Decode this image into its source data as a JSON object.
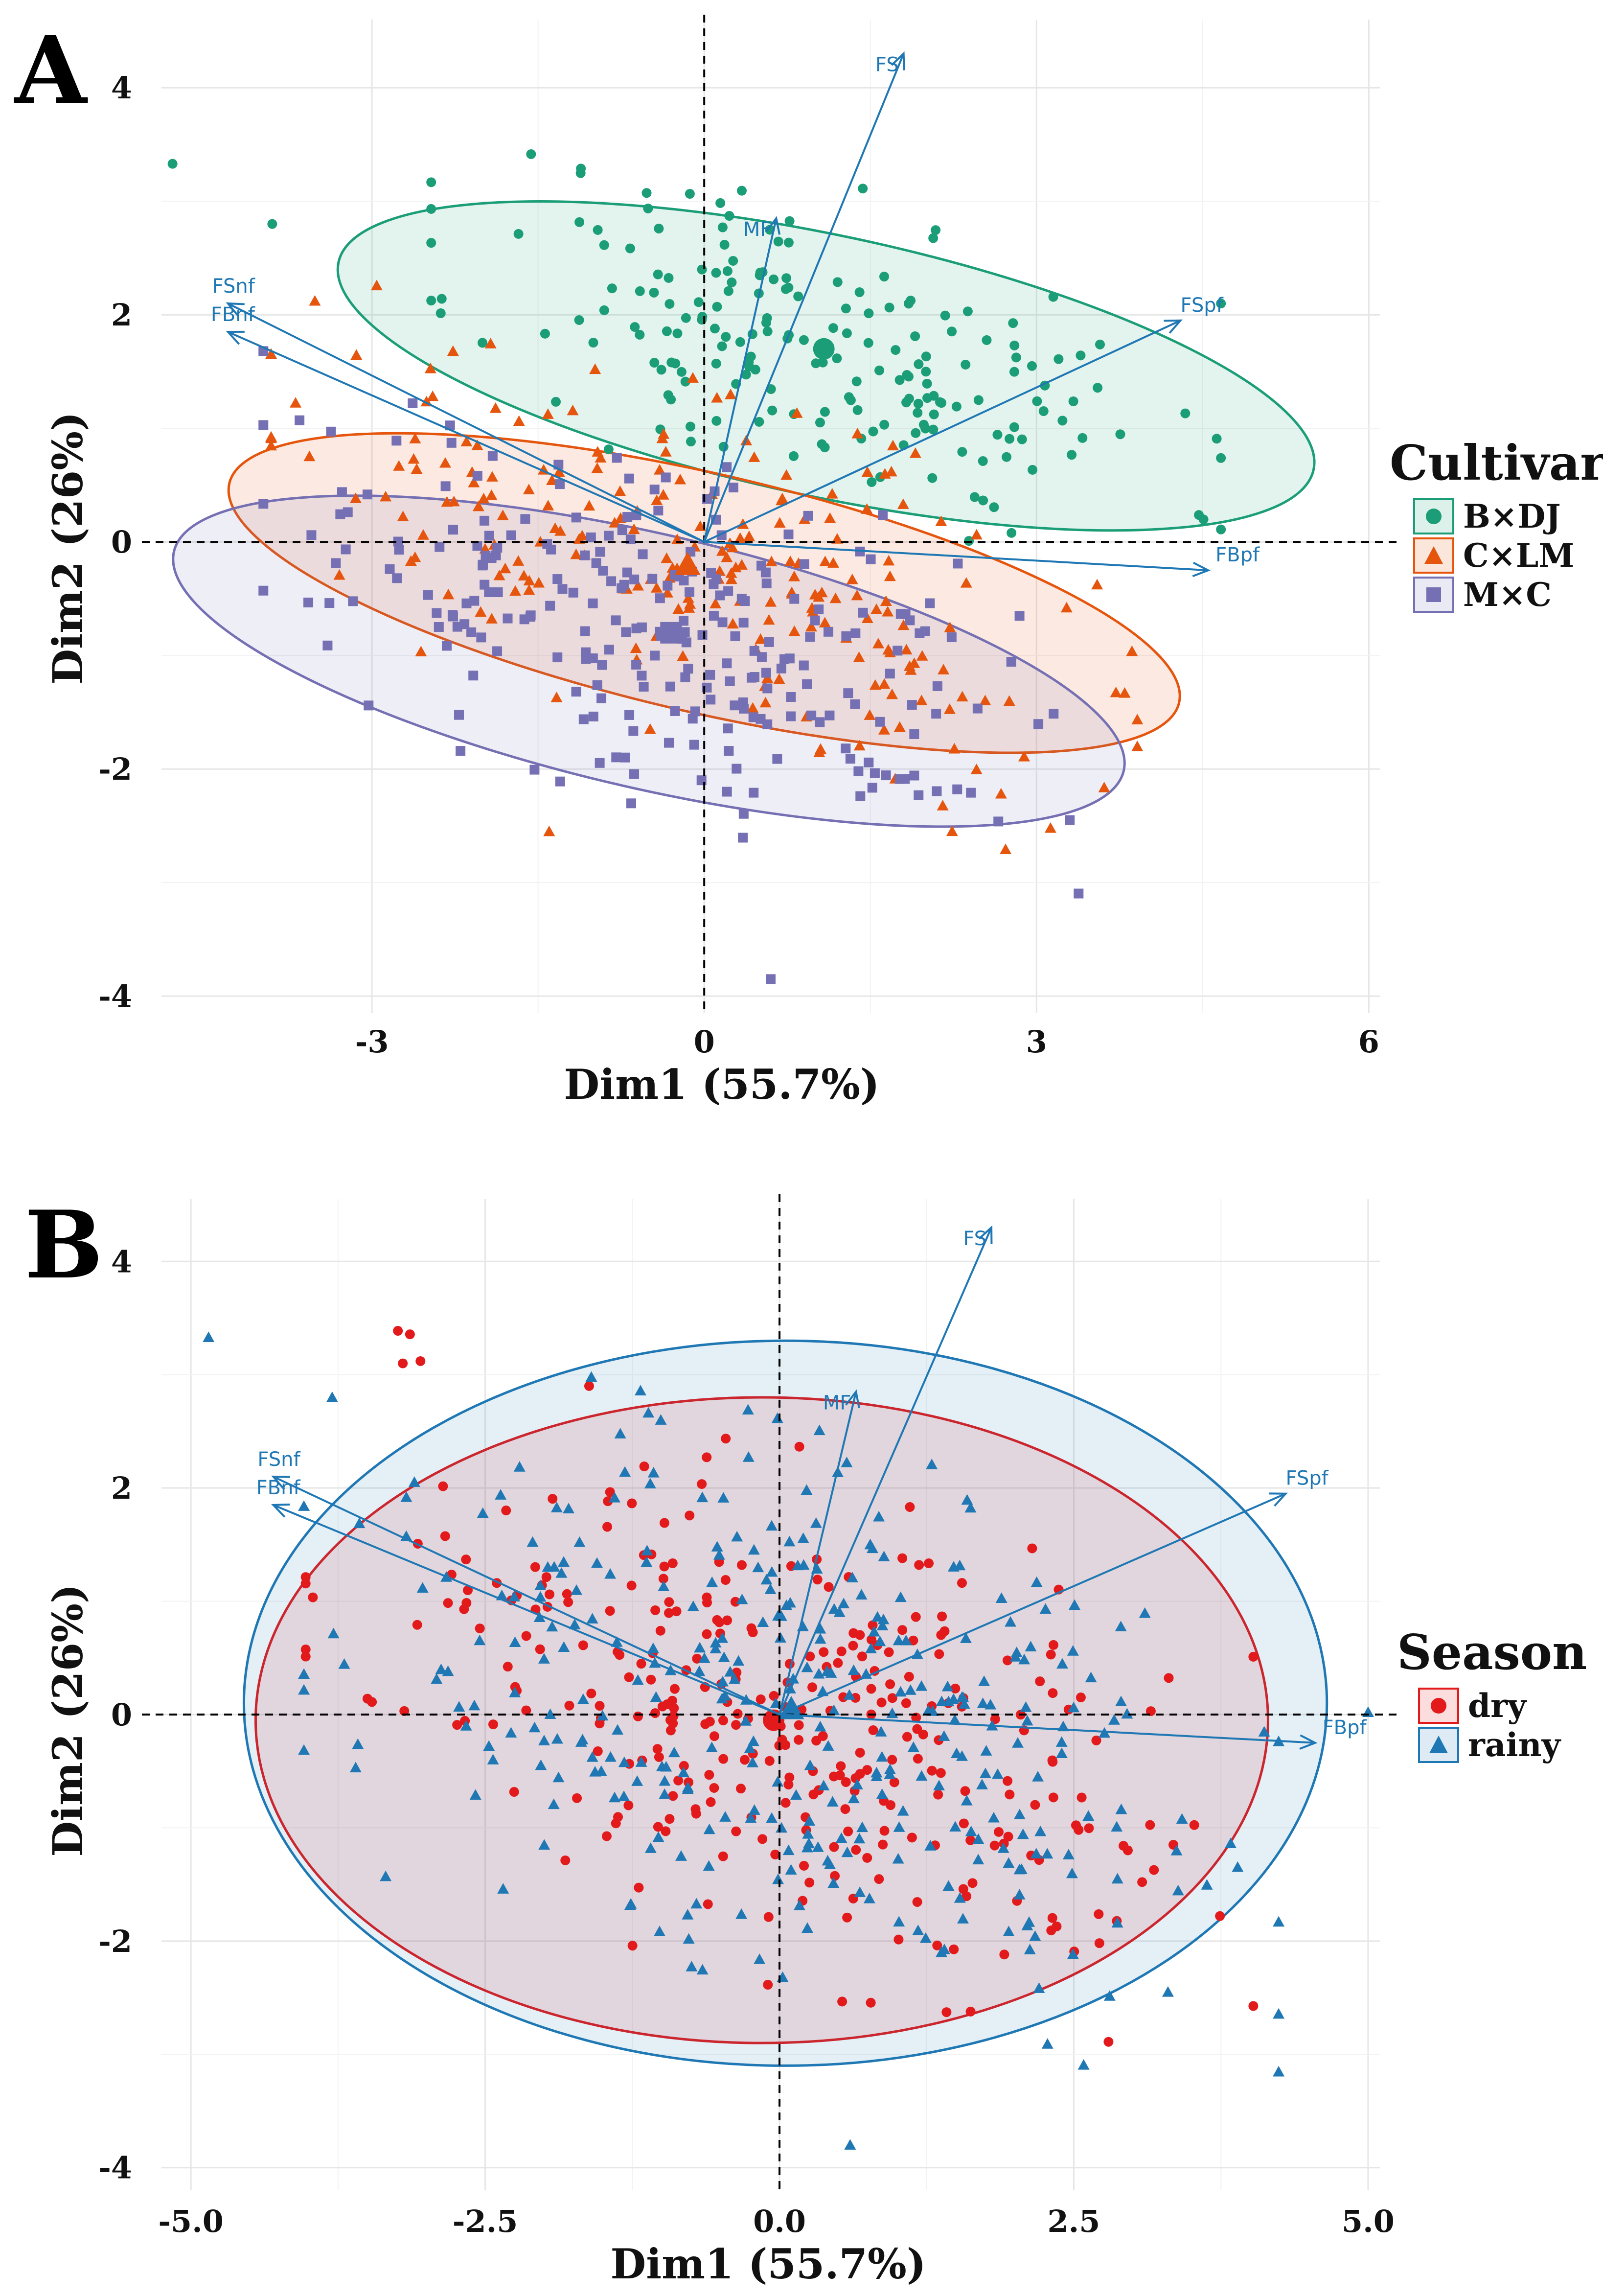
{
  "figure_title": "",
  "chart_data": [
    {
      "panel": "A",
      "type": "scatter",
      "title": "",
      "xlabel": "Dim1 (55.7%)",
      "ylabel": "Dim2 (26%)",
      "xlim": [
        -4.9,
        6.1
      ],
      "ylim": [
        -4.15,
        4.6
      ],
      "xticks": [
        -3,
        0,
        3,
        6
      ],
      "xtick_labels": [
        "-3",
        "0",
        "3",
        "6"
      ],
      "yticks": [
        -4,
        -2,
        0,
        2,
        4
      ],
      "ytick_labels": [
        "-4",
        "-2",
        "0",
        "2",
        "4"
      ],
      "grid": true,
      "legend": {
        "title": "Cultivar",
        "position": "right"
      },
      "series": [
        {
          "name": "B×DJ",
          "color": "#1b9e77",
          "marker": "circle",
          "center": [
            1.1,
            1.7
          ],
          "spread": [
            1.55,
            0.65
          ],
          "tilt": -0.25,
          "n": 200,
          "seed": 11,
          "ellipse": {
            "cx": 1.1,
            "cy": 1.55,
            "rx": 4.5,
            "ry": 1.15,
            "angle_deg": -12
          }
        },
        {
          "name": "C×LM",
          "color": "#e6550d",
          "marker": "triangle",
          "center": 0.0,
          "spread": [
            1.7,
            0.7
          ],
          "tilt": -0.33,
          "n": 230,
          "seed": 22,
          "ellipse": {
            "cx": 0.0,
            "cy": -0.45,
            "rx": 4.4,
            "ry": 1.05,
            "angle_deg": -13
          }
        },
        {
          "name": "M×C",
          "color": "#7570b3",
          "marker": "square",
          "center": [
            -0.3,
            -0.8
          ],
          "spread": [
            1.6,
            0.7
          ],
          "tilt": -0.3,
          "n": 260,
          "seed": 33,
          "ellipse": {
            "cx": -0.5,
            "cy": -1.05,
            "rx": 4.4,
            "ry": 1.12,
            "angle_deg": -13
          }
        }
      ],
      "center_points": [
        {
          "series": "B×DJ",
          "x": 1.08,
          "y": 1.7
        },
        {
          "series": "C×LM",
          "x": -0.15,
          "y": -0.2
        },
        {
          "series": "M×C",
          "x": -0.3,
          "y": -0.8
        }
      ],
      "outliers": [
        {
          "series": "B×DJ",
          "x": -4.8,
          "y": 3.33
        },
        {
          "series": "B×DJ",
          "x": -3.9,
          "y": 2.8
        },
        {
          "series": "C×LM",
          "x": -1.4,
          "y": -2.55
        },
        {
          "series": "M×C",
          "x": 0.6,
          "y": -3.85
        },
        {
          "series": "M×C",
          "x": 3.3,
          "y": -2.45
        }
      ],
      "arrows": [
        {
          "label": "FS",
          "x": 1.8,
          "y": 4.3
        },
        {
          "label": "MF",
          "x": 0.65,
          "y": 2.85
        },
        {
          "label": "FSpf",
          "x": 4.3,
          "y": 1.95
        },
        {
          "label": "FSnf",
          "x": -4.3,
          "y": 2.1
        },
        {
          "label": "FBnf",
          "x": -4.3,
          "y": 1.85
        },
        {
          "label": "FBpf",
          "x": 4.55,
          "y": -0.25
        }
      ]
    },
    {
      "panel": "B",
      "type": "scatter",
      "title": "",
      "xlabel": "Dim1 (55.7%)",
      "ylabel": "Dim2 (26%)",
      "xlim": [
        -5.25,
        5.1
      ],
      "ylim": [
        -4.2,
        4.55
      ],
      "xticks": [
        -5.0,
        -2.5,
        0.0,
        2.5,
        5.0
      ],
      "xtick_labels": [
        "-5.0",
        "-2.5",
        "0.0",
        "2.5",
        "5.0"
      ],
      "yticks": [
        -4,
        -2,
        0,
        2,
        4
      ],
      "ytick_labels": [
        "-4",
        "-2",
        "0",
        "2",
        "4"
      ],
      "grid": true,
      "legend": {
        "title": "Season",
        "position": "right"
      },
      "series": [
        {
          "name": "dry",
          "color": "#e31a1c",
          "marker": "circle",
          "center": [
            0.0,
            0.0
          ],
          "spread": [
            1.75,
            1.05
          ],
          "tilt": -0.3,
          "n": 330,
          "seed": 44,
          "ellipse": {
            "cx": -0.15,
            "cy": -0.05,
            "rx": 4.3,
            "ry": 2.85,
            "angle_deg": 0
          }
        },
        {
          "name": "rainy",
          "color": "#1f78b4",
          "marker": "triangle",
          "center": [
            0.1,
            0.05
          ],
          "spread": [
            1.8,
            1.1
          ],
          "tilt": -0.3,
          "n": 360,
          "seed": 55,
          "ellipse": {
            "cx": 0.05,
            "cy": 0.1,
            "rx": 4.6,
            "ry": 3.2,
            "angle_deg": 0
          }
        }
      ],
      "center_points": [
        {
          "series": "dry",
          "x": -0.05,
          "y": -0.05
        },
        {
          "series": "rainy",
          "x": 0.1,
          "y": 0.05
        }
      ],
      "outliers": [
        {
          "series": "rainy",
          "x": -4.85,
          "y": 3.33
        },
        {
          "series": "dry",
          "x": -3.2,
          "y": 3.1
        },
        {
          "series": "dry",
          "x": -3.05,
          "y": 3.12
        },
        {
          "series": "rainy",
          "x": -3.8,
          "y": 2.8
        },
        {
          "series": "rainy",
          "x": 0.6,
          "y": -3.8
        },
        {
          "series": "rainy",
          "x": 3.3,
          "y": -2.45
        },
        {
          "series": "rainy",
          "x": 5.0,
          "y": 0.02
        }
      ],
      "arrows": [
        {
          "label": "FS",
          "x": 1.8,
          "y": 4.3
        },
        {
          "label": "MF",
          "x": 0.65,
          "y": 2.85
        },
        {
          "label": "FSpf",
          "x": 4.3,
          "y": 1.95
        },
        {
          "label": "FSnf",
          "x": -4.3,
          "y": 2.1
        },
        {
          "label": "FBnf",
          "x": -4.3,
          "y": 1.85
        },
        {
          "label": "FBpf",
          "x": 4.55,
          "y": -0.25
        }
      ]
    }
  ]
}
